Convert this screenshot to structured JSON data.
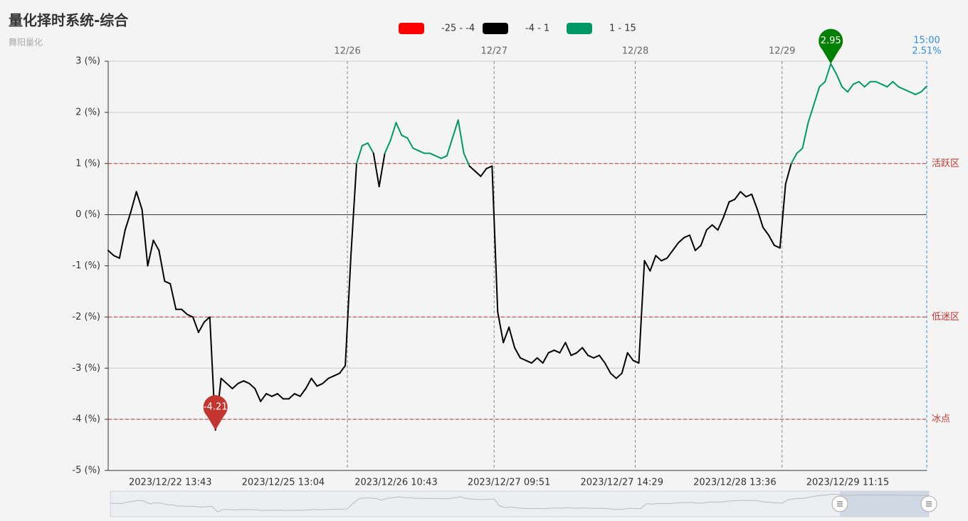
{
  "chart_data": {
    "type": "line",
    "title": "量化择时系统-综合",
    "subtitle": "舞阳量化",
    "pieces": [
      {
        "min": -25,
        "max": -4,
        "label": "-25 - -4",
        "color": "#ff0000"
      },
      {
        "min": -4,
        "max": 1,
        "label": "-4 - 1",
        "color": "#000000"
      },
      {
        "min": 1,
        "max": 15,
        "label": "1 - 15",
        "color": "#009966"
      }
    ],
    "categories": [
      null,
      null,
      null,
      null,
      null,
      null,
      null,
      null,
      null,
      null,
      null,
      "2023/12/22 13:43",
      null,
      null,
      null,
      null,
      null,
      null,
      null,
      null,
      null,
      null,
      null,
      null,
      null,
      null,
      null,
      null,
      null,
      null,
      null,
      "2023/12/25 13:04",
      null,
      null,
      null,
      null,
      null,
      null,
      null,
      null,
      null,
      null,
      null,
      null,
      null,
      null,
      null,
      null,
      null,
      null,
      null,
      "2023/12/26 10:43",
      null,
      null,
      null,
      null,
      null,
      null,
      null,
      null,
      null,
      null,
      null,
      null,
      null,
      null,
      null,
      null,
      null,
      null,
      null,
      "2023/12/27 09:51",
      null,
      null,
      null,
      null,
      null,
      null,
      null,
      null,
      null,
      null,
      null,
      null,
      null,
      null,
      null,
      null,
      null,
      null,
      null,
      "2023/12/27 14:29",
      null,
      null,
      null,
      null,
      null,
      null,
      null,
      null,
      null,
      null,
      null,
      null,
      null,
      null,
      null,
      null,
      null,
      null,
      null,
      "2023/12/28 13:36",
      null,
      null,
      null,
      null,
      null,
      null,
      null,
      null,
      null,
      null,
      null,
      null,
      null,
      null,
      null,
      null,
      null,
      null,
      null,
      "2023/12/29 11:15",
      null,
      null,
      null,
      null,
      null,
      null,
      null,
      null,
      null,
      null,
      null,
      null,
      null,
      null
    ],
    "day_labels": [
      null,
      null,
      null,
      null,
      null,
      null,
      null,
      null,
      null,
      null,
      null,
      null,
      null,
      null,
      null,
      null,
      null,
      null,
      null,
      null,
      null,
      null,
      null,
      null,
      null,
      null,
      null,
      null,
      null,
      null,
      null,
      null,
      null,
      null,
      null,
      null,
      null,
      null,
      null,
      null,
      null,
      null,
      null,
      "12/26",
      null,
      null,
      null,
      null,
      null,
      null,
      null,
      null,
      null,
      null,
      null,
      null,
      null,
      null,
      null,
      null,
      null,
      null,
      null,
      null,
      null,
      null,
      null,
      null,
      null,
      "12/27",
      null,
      null,
      null,
      null,
      null,
      null,
      null,
      null,
      null,
      null,
      null,
      null,
      null,
      null,
      null,
      null,
      null,
      null,
      null,
      null,
      null,
      null,
      null,
      null,
      "12/28",
      null,
      null,
      null,
      null,
      null,
      null,
      null,
      null,
      null,
      null,
      null,
      null,
      null,
      null,
      null,
      null,
      null,
      null,
      null,
      null,
      null,
      null,
      null,
      null,
      null,
      "12/29",
      null,
      null,
      null,
      null,
      null,
      null,
      null,
      null,
      null,
      null,
      null,
      null,
      null,
      null,
      null,
      null,
      null,
      null,
      null,
      null,
      null,
      null,
      null,
      null,
      null
    ],
    "values": [
      -0.7,
      -0.8,
      -0.85,
      -0.3,
      0.05,
      0.45,
      0.1,
      -1.0,
      -0.5,
      -0.7,
      -1.3,
      -1.35,
      -1.85,
      -1.85,
      -1.95,
      -2.0,
      -2.3,
      -2.1,
      -2.0,
      -4.21,
      -3.2,
      -3.3,
      -3.4,
      -3.3,
      -3.25,
      -3.3,
      -3.4,
      -3.65,
      -3.5,
      -3.55,
      -3.5,
      -3.6,
      -3.6,
      -3.5,
      -3.55,
      -3.4,
      -3.2,
      -3.35,
      -3.3,
      -3.2,
      -3.15,
      -3.1,
      -2.95,
      -0.8,
      1.0,
      1.35,
      1.4,
      1.2,
      0.55,
      1.2,
      1.45,
      1.8,
      1.55,
      1.5,
      1.3,
      1.25,
      1.2,
      1.2,
      1.15,
      1.1,
      1.15,
      1.5,
      1.85,
      1.2,
      0.95,
      0.85,
      0.75,
      0.9,
      0.95,
      -1.9,
      -2.5,
      -2.2,
      -2.6,
      -2.8,
      -2.85,
      -2.9,
      -2.8,
      -2.9,
      -2.7,
      -2.65,
      -2.7,
      -2.5,
      -2.75,
      -2.7,
      -2.6,
      -2.75,
      -2.8,
      -2.75,
      -2.9,
      -3.1,
      -3.2,
      -3.1,
      -2.7,
      -2.85,
      -2.9,
      -0.9,
      -1.1,
      -0.8,
      -0.9,
      -0.85,
      -0.7,
      -0.55,
      -0.45,
      -0.4,
      -0.7,
      -0.6,
      -0.3,
      -0.2,
      -0.3,
      -0.05,
      0.25,
      0.3,
      0.45,
      0.35,
      0.4,
      0.1,
      -0.25,
      -0.4,
      -0.6,
      -0.65,
      0.6,
      1.0,
      1.2,
      1.3,
      1.8,
      2.15,
      2.5,
      2.6,
      2.95,
      2.75,
      2.5,
      2.4,
      2.55,
      2.6,
      2.5,
      2.6,
      2.6,
      2.55,
      2.5,
      2.6,
      2.5,
      2.45,
      2.4,
      2.35,
      2.4,
      2.51
    ],
    "ylim": [
      -5,
      3
    ],
    "yticks": [
      {
        "value": -5,
        "label": "-5 (%)"
      },
      {
        "value": -4,
        "label": "-4 (%)"
      },
      {
        "value": -3,
        "label": "-3 (%)"
      },
      {
        "value": -2,
        "label": "-2 (%)"
      },
      {
        "value": -1,
        "label": "-1 (%)"
      },
      {
        "value": 0,
        "label": "0 (%)"
      },
      {
        "value": 1,
        "label": "1 (%)"
      },
      {
        "value": 2,
        "label": "2 (%)"
      },
      {
        "value": 3,
        "label": "3 (%)"
      }
    ],
    "grid": true,
    "mark_lines": [
      {
        "value": 1,
        "label": "活跃区"
      },
      {
        "value": -2,
        "label": "低迷区"
      },
      {
        "value": -4,
        "label": "冰点"
      }
    ],
    "mark_line_color": "#c23531",
    "pin_colors": {
      "min": "#c23531",
      "max": "#008000"
    },
    "end_label": {
      "time": "15:00",
      "value_label": "2.51%",
      "color": "#2f8fe6"
    }
  }
}
